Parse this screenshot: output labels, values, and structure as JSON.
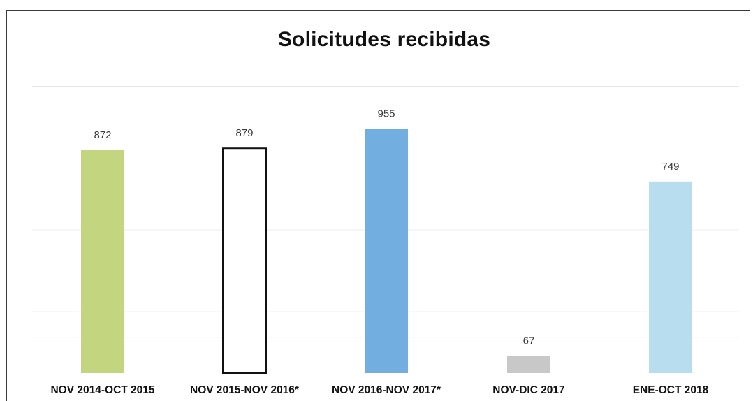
{
  "chart_data": {
    "type": "bar",
    "title": "Solicitudes recibidas",
    "categories": [
      "NOV 2014-OCT 2015",
      "NOV 2015-NOV 2016*",
      "NOV 2016-NOV 2017*",
      "NOV-DIC 2017",
      "ENE-OCT 2018"
    ],
    "values": [
      872,
      879,
      955,
      67,
      749
    ],
    "bar_colors": [
      "#c3d67f",
      "#ffffff",
      "#72aee0",
      "#c8c8c8",
      "#b8ddef"
    ],
    "bar_outline": [
      false,
      true,
      false,
      false,
      false
    ],
    "xlabel": "",
    "ylabel": "",
    "ylim": [
      0,
      1120
    ],
    "grid": true,
    "legend": "none"
  }
}
